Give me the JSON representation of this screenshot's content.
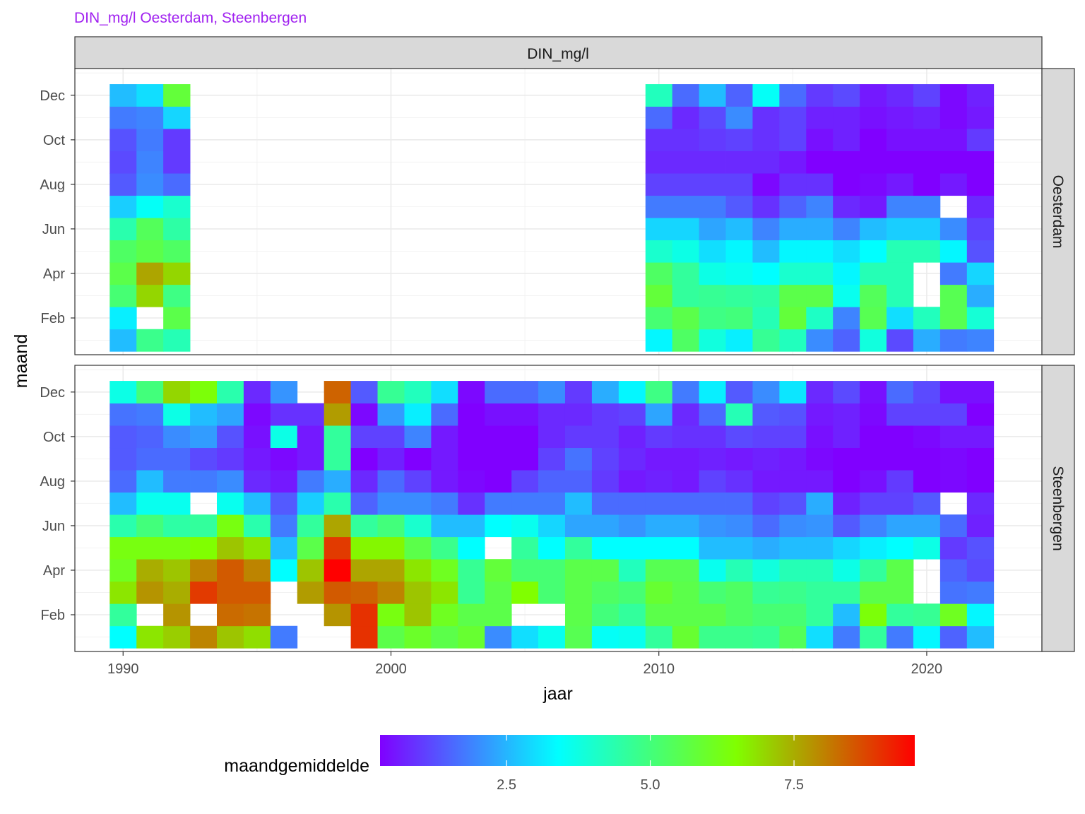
{
  "chart_data": {
    "type": "heatmap",
    "title": "DIN_mg/l Oesterdam, Steenbergen",
    "facet_column_label": "DIN_mg/l",
    "xlabel": "jaar",
    "ylabel": "maand",
    "x_ticks": [
      1990,
      2000,
      2010,
      2020
    ],
    "x_range": [
      1988.2,
      2024.3
    ],
    "y_range": [
      0.35,
      13.2
    ],
    "y_ticks": [
      {
        "label": "Dec",
        "month": 12
      },
      {
        "label": "Oct",
        "month": 10
      },
      {
        "label": "Aug",
        "month": 8
      },
      {
        "label": "Jun",
        "month": 6
      },
      {
        "label": "Apr",
        "month": 4
      },
      {
        "label": "Feb",
        "month": 2
      }
    ],
    "grid": true,
    "legend": {
      "title": "maandgemiddelde",
      "position": "bottom",
      "range": [
        0.3,
        9.6
      ],
      "ticks": [
        2.5,
        5.0,
        7.5
      ],
      "tick_labels": [
        "2.5",
        "5.0",
        "7.5"
      ]
    },
    "color_scale": [
      "#8000ff",
      "#00ffff",
      "#80ff00",
      "#ff0000"
    ],
    "panels": [
      {
        "name": "Oesterdam",
        "years": [
          1990,
          1991,
          1992,
          2010,
          2011,
          2012,
          2013,
          2014,
          2015,
          2016,
          2017,
          2018,
          2019,
          2020,
          2021,
          2022
        ],
        "values_by_month": {
          "1": [
            2.6,
            4.8,
            4.3,
            3.3,
            5.3,
            3.8,
            3.2,
            4.7,
            4.2,
            2.0,
            1.5,
            3.8,
            1.2,
            2.4,
            1.8,
            1.9
          ],
          "2": [
            3.2,
            null,
            5.6,
            5.1,
            5.6,
            4.9,
            5.0,
            4.3,
            5.8,
            4.1,
            1.9,
            5.5,
            3.0,
            4.2,
            5.5,
            3.9
          ],
          "3": [
            5.1,
            7.0,
            4.9,
            5.8,
            4.6,
            4.7,
            4.6,
            4.5,
            5.6,
            5.6,
            3.6,
            5.4,
            4.3,
            null,
            5.5,
            2.4
          ],
          "4": [
            5.6,
            7.6,
            7.0,
            5.3,
            4.6,
            3.7,
            3.6,
            3.4,
            4.0,
            4.0,
            3.3,
            4.3,
            4.3,
            null,
            1.8,
            2.9
          ],
          "5": [
            5.3,
            5.6,
            5.3,
            4.0,
            3.7,
            3.0,
            3.3,
            2.6,
            3.3,
            3.3,
            3.0,
            3.4,
            4.3,
            4.3,
            3.3,
            1.3
          ],
          "6": [
            4.4,
            5.4,
            4.5,
            2.9,
            2.9,
            2.3,
            2.6,
            1.9,
            2.4,
            2.4,
            1.9,
            2.6,
            2.8,
            2.8,
            2.0,
            1.1
          ],
          "7": [
            2.8,
            3.5,
            4.0,
            1.8,
            1.8,
            1.8,
            1.4,
            0.9,
            1.5,
            1.9,
            0.8,
            0.6,
            1.9,
            1.9,
            null,
            0.8
          ],
          "8": [
            1.4,
            2.0,
            1.6,
            1.1,
            1.1,
            1.1,
            1.1,
            0.4,
            0.9,
            0.9,
            0.2,
            0.4,
            0.6,
            0.2,
            0.6,
            0.1
          ],
          "9": [
            1.2,
            1.9,
            1.0,
            0.8,
            0.8,
            0.8,
            0.8,
            0.8,
            0.6,
            0.2,
            0.2,
            0.3,
            0.0,
            0.3,
            0.2,
            0.0
          ],
          "10": [
            1.3,
            1.8,
            1.0,
            0.9,
            0.9,
            1.0,
            1.1,
            0.9,
            1.1,
            0.5,
            0.7,
            0.3,
            0.5,
            0.5,
            0.5,
            1.0
          ],
          "11": [
            1.8,
            1.9,
            2.9,
            1.6,
            0.8,
            1.2,
            2.0,
            0.9,
            1.1,
            0.7,
            0.7,
            0.5,
            0.6,
            0.7,
            0.4,
            0.6
          ],
          "12": [
            2.6,
            3.0,
            5.8,
            4.2,
            1.6,
            2.6,
            1.5,
            3.5,
            1.6,
            1.0,
            1.2,
            0.6,
            0.8,
            1.1,
            0.4,
            0.7
          ]
        }
      },
      {
        "name": "Steenbergen",
        "years": [
          1990,
          1991,
          1992,
          1993,
          1994,
          1995,
          1996,
          1997,
          1998,
          1999,
          2000,
          2001,
          2002,
          2003,
          2004,
          2005,
          2006,
          2007,
          2008,
          2009,
          2010,
          2011,
          2012,
          2013,
          2014,
          2015,
          2016,
          2017,
          2018,
          2019,
          2020,
          2021,
          2022
        ],
        "values_by_month": {
          "1": [
            3.4,
            6.8,
            7.1,
            8.0,
            7.2,
            6.9,
            1.8,
            null,
            null,
            9.0,
            5.6,
            6.0,
            5.6,
            5.9,
            2.0,
            3.0,
            3.6,
            5.5,
            3.5,
            3.6,
            4.6,
            5.9,
            4.8,
            4.8,
            4.7,
            5.4,
            3.0,
            1.8,
            4.6,
            1.8,
            3.3,
            1.5,
            2.6
          ],
          "2": [
            4.6,
            null,
            7.8,
            null,
            8.3,
            8.2,
            null,
            null,
            7.8,
            9.0,
            6.3,
            7.2,
            6.1,
            5.6,
            5.6,
            null,
            null,
            5.6,
            5.0,
            4.6,
            5.6,
            5.6,
            5.6,
            5.3,
            5.1,
            5.1,
            4.6,
            2.6,
            6.4,
            4.6,
            4.7,
            6.1,
            3.3
          ],
          "3": [
            6.8,
            7.8,
            7.5,
            8.9,
            8.5,
            8.5,
            null,
            7.7,
            8.5,
            8.4,
            8.0,
            7.2,
            6.8,
            4.7,
            5.6,
            6.5,
            5.1,
            5.6,
            5.3,
            5.1,
            5.9,
            5.6,
            5.1,
            5.3,
            4.7,
            4.8,
            4.6,
            4.6,
            5.6,
            5.6,
            null,
            1.7,
            1.8
          ],
          "4": [
            6.1,
            7.5,
            7.2,
            8.0,
            8.5,
            8.0,
            3.4,
            7.2,
            9.8,
            7.6,
            7.6,
            6.8,
            6.1,
            4.7,
            5.8,
            5.1,
            5.1,
            5.6,
            5.6,
            4.2,
            5.5,
            5.5,
            3.6,
            4.3,
            3.8,
            4.3,
            4.3,
            3.7,
            4.6,
            5.6,
            null,
            1.5,
            1.2
          ],
          "5": [
            6.3,
            6.3,
            6.3,
            6.5,
            7.2,
            6.8,
            2.6,
            5.6,
            8.9,
            6.6,
            6.6,
            5.6,
            4.8,
            3.4,
            null,
            4.6,
            3.4,
            4.6,
            3.4,
            3.4,
            3.4,
            3.4,
            2.6,
            2.6,
            2.4,
            2.6,
            2.6,
            2.9,
            3.2,
            3.4,
            3.7,
            1.0,
            1.3
          ],
          "6": [
            4.4,
            5.0,
            4.5,
            4.6,
            6.3,
            4.4,
            1.8,
            4.6,
            7.6,
            4.6,
            5.0,
            4.0,
            2.6,
            2.6,
            3.4,
            3.6,
            2.9,
            2.3,
            2.3,
            2.1,
            2.4,
            2.4,
            2.1,
            2.0,
            1.6,
            2.0,
            2.1,
            1.4,
            1.9,
            2.3,
            2.3,
            1.6,
            0.7
          ],
          "7": [
            2.6,
            3.6,
            3.6,
            null,
            3.6,
            2.6,
            1.4,
            2.8,
            4.4,
            1.5,
            2.0,
            2.0,
            1.8,
            0.9,
            1.8,
            1.8,
            1.8,
            2.6,
            1.6,
            1.6,
            1.6,
            1.6,
            1.6,
            1.6,
            1.1,
            1.3,
            2.4,
            0.7,
            1.1,
            1.1,
            1.4,
            null,
            0.8
          ],
          "8": [
            1.6,
            2.6,
            1.8,
            1.8,
            2.0,
            0.8,
            0.6,
            1.8,
            2.4,
            0.8,
            1.6,
            1.1,
            0.6,
            0.4,
            0.3,
            1.1,
            1.5,
            1.5,
            1.0,
            0.6,
            0.7,
            0.6,
            1.1,
            0.9,
            0.6,
            0.6,
            0.6,
            0.0,
            0.5,
            1.0,
            0.2,
            0.4,
            0.3
          ],
          "9": [
            1.4,
            1.6,
            1.6,
            1.2,
            1.0,
            0.6,
            0.4,
            0.6,
            4.6,
            0.3,
            0.7,
            0.3,
            0.6,
            0.1,
            0.1,
            0.3,
            1.1,
            1.7,
            1.1,
            0.8,
            0.6,
            0.6,
            0.7,
            0.6,
            0.7,
            0.6,
            0.4,
            0.3,
            0.3,
            0.3,
            0.3,
            0.4,
            0.2
          ],
          "10": [
            1.4,
            1.5,
            2.0,
            2.2,
            1.3,
            0.5,
            3.7,
            0.6,
            4.6,
            1.1,
            1.1,
            1.9,
            0.6,
            0.2,
            0.3,
            0.1,
            0.8,
            1.0,
            1.0,
            0.7,
            1.0,
            0.9,
            0.9,
            1.2,
            1.1,
            1.1,
            0.5,
            0.7,
            0.3,
            0.3,
            0.4,
            0.6,
            0.6
          ],
          "11": [
            1.7,
            1.8,
            3.7,
            2.6,
            2.3,
            0.4,
            0.9,
            0.9,
            7.7,
            0.4,
            2.2,
            3.2,
            1.6,
            0.3,
            0.5,
            0.5,
            0.8,
            0.8,
            1.0,
            1.1,
            2.3,
            0.8,
            1.6,
            4.3,
            1.4,
            1.3,
            0.6,
            0.7,
            0.4,
            1.1,
            1.1,
            1.1,
            0.3
          ],
          "12": [
            3.7,
            5.0,
            7.0,
            6.4,
            4.4,
            0.8,
            2.1,
            null,
            8.4,
            1.4,
            4.7,
            4.2,
            3.0,
            0.4,
            1.6,
            1.6,
            2.0,
            1.0,
            2.4,
            3.3,
            4.9,
            1.8,
            3.2,
            1.4,
            2.0,
            3.1,
            0.8,
            1.2,
            0.5,
            1.6,
            1.2,
            0.5,
            0.5
          ]
        }
      }
    ]
  }
}
